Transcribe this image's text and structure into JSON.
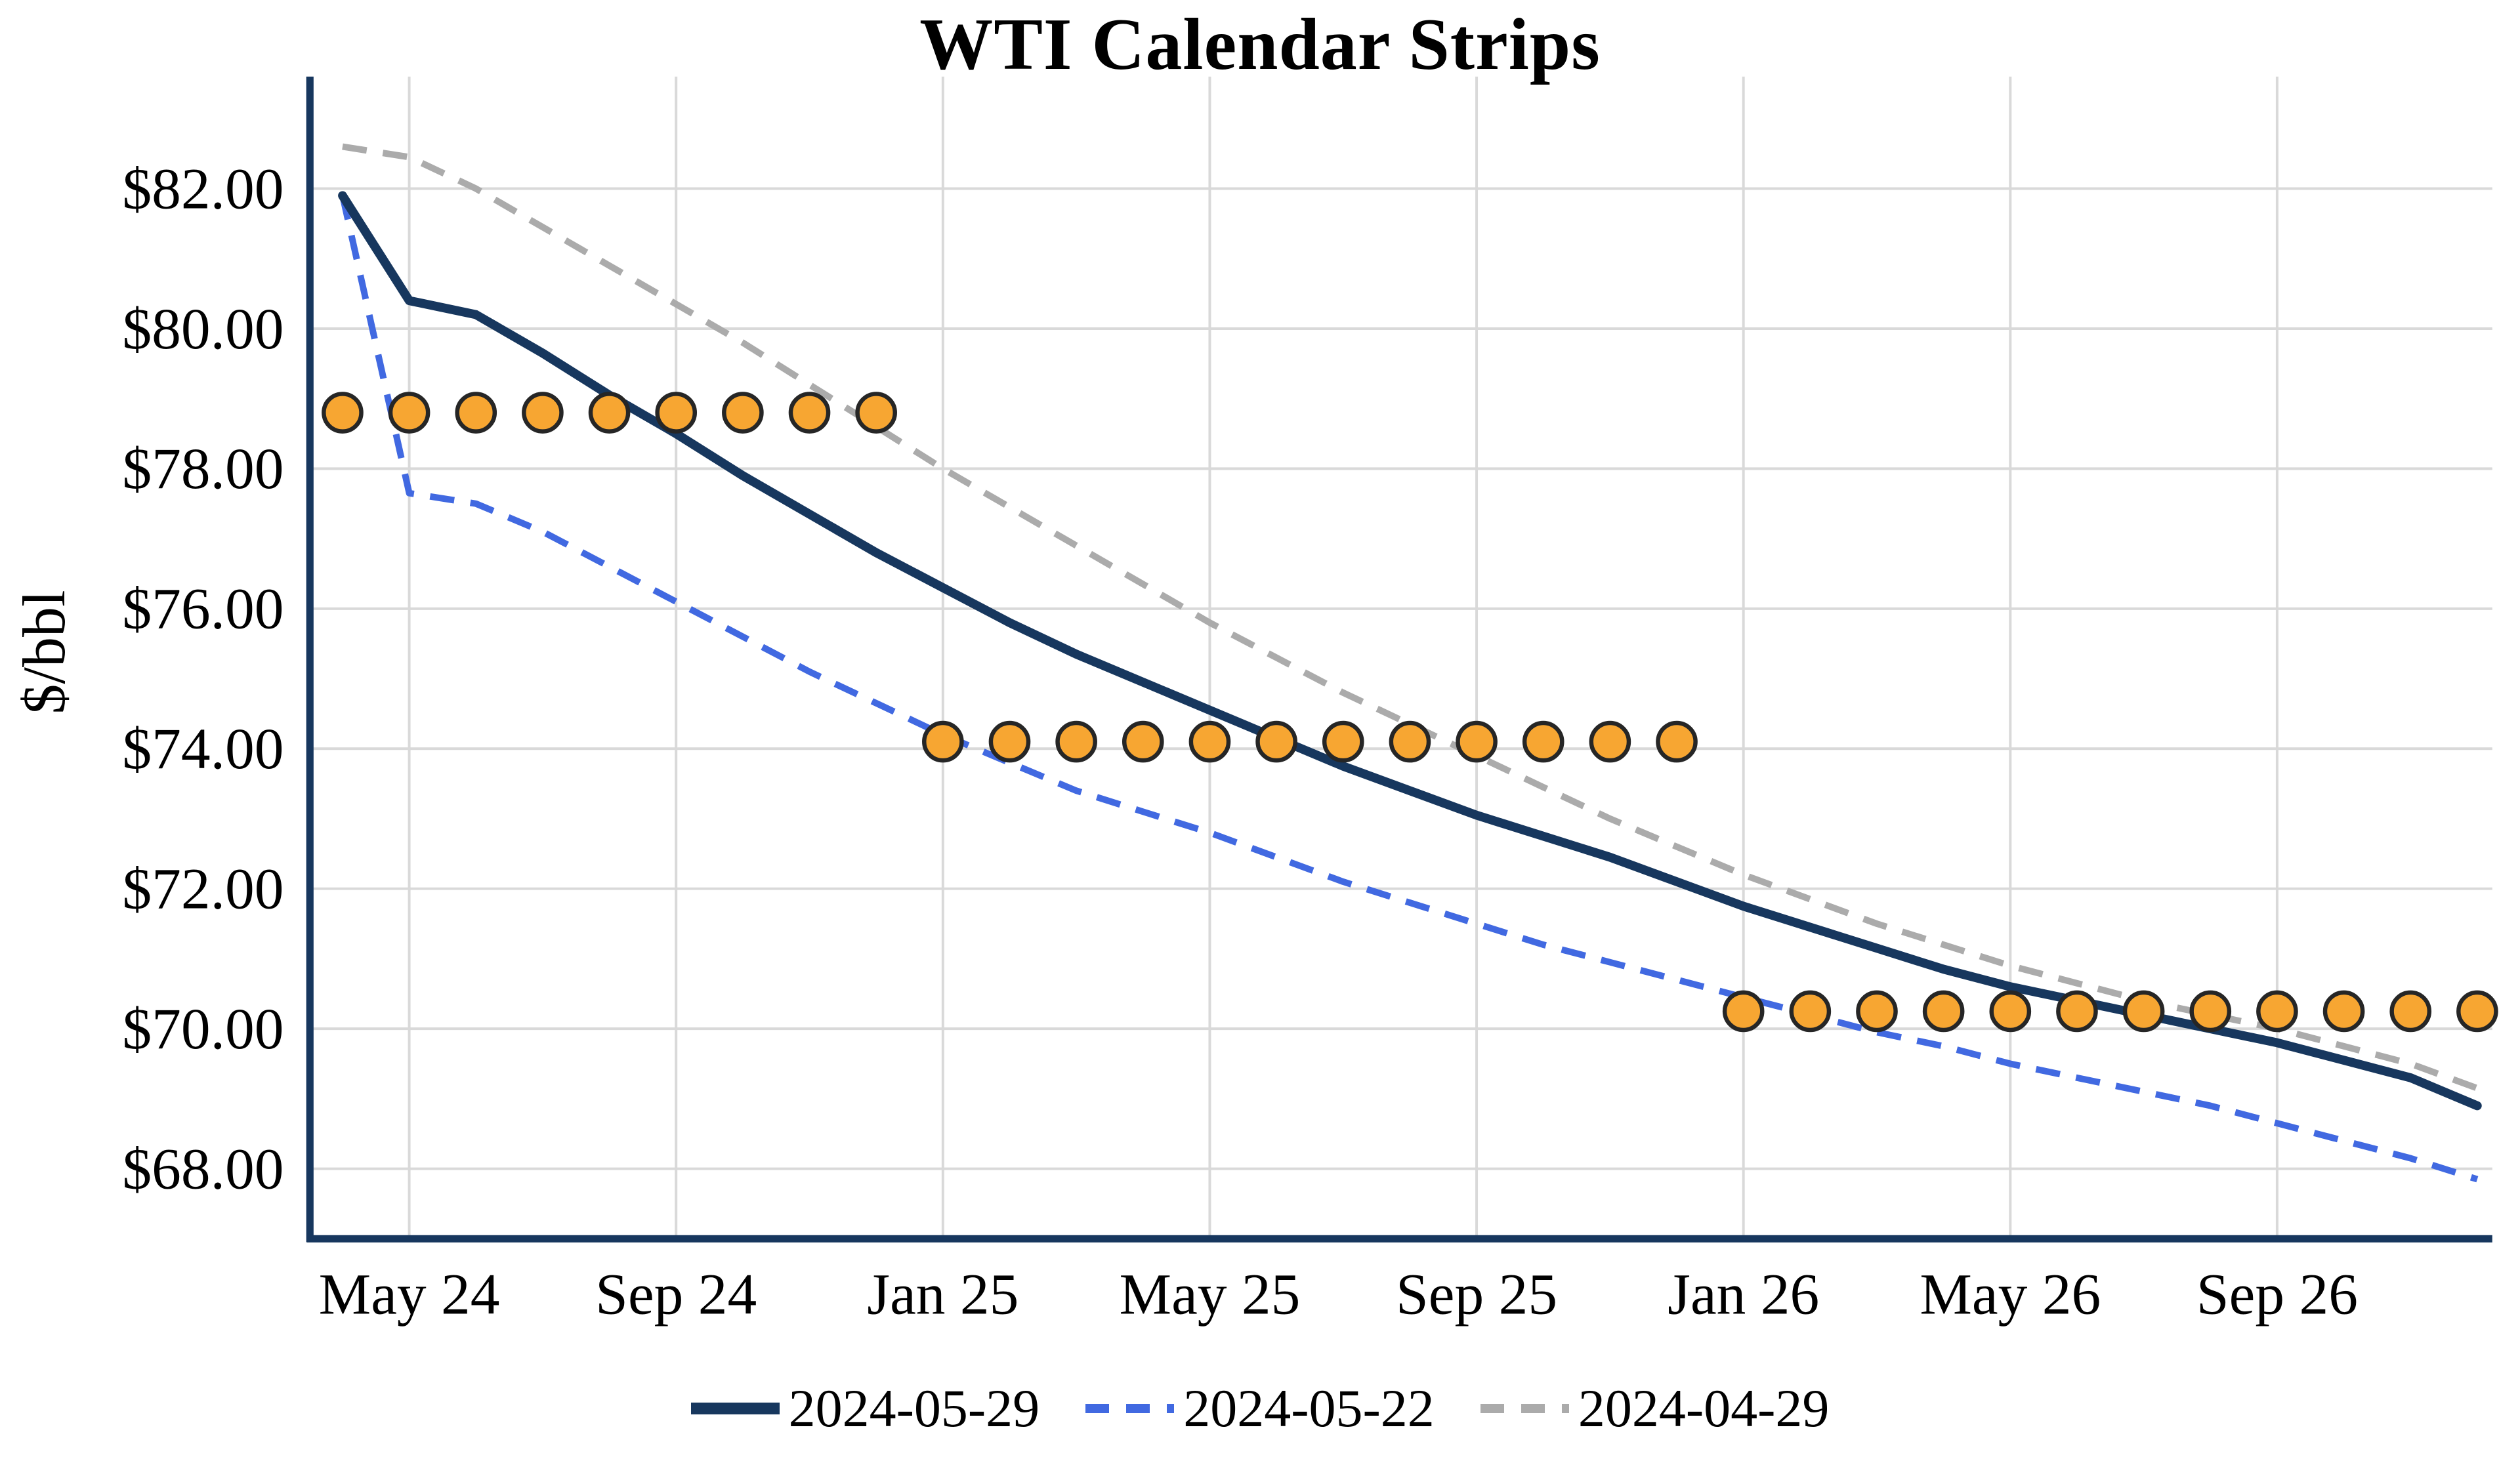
{
  "chart_data": {
    "type": "line",
    "title": "WTI Calendar Strips",
    "xlabel": "",
    "ylabel": "$/bbl",
    "ylim": [
      67.0,
      83.6
    ],
    "grid": true,
    "legend_position": "bottom",
    "background": "#FFFFFF",
    "axis_color": "#17375E",
    "grid_color": "#D9D9D9",
    "x_months": [
      "2024-04",
      "2024-05",
      "2024-06",
      "2024-07",
      "2024-08",
      "2024-09",
      "2024-10",
      "2024-11",
      "2024-12",
      "2025-01",
      "2025-02",
      "2025-03",
      "2025-04",
      "2025-05",
      "2025-06",
      "2025-07",
      "2025-08",
      "2025-09",
      "2025-10",
      "2025-11",
      "2025-12",
      "2026-01",
      "2026-02",
      "2026-03",
      "2026-04",
      "2026-05",
      "2026-06",
      "2026-07",
      "2026-08",
      "2026-09",
      "2026-10",
      "2026-11",
      "2026-12"
    ],
    "x_tick_labels": [
      {
        "label": "May 24",
        "month_index": 1
      },
      {
        "label": "Sep 24",
        "month_index": 5
      },
      {
        "label": "Jan 25",
        "month_index": 9
      },
      {
        "label": "May 25",
        "month_index": 13
      },
      {
        "label": "Sep 25",
        "month_index": 17
      },
      {
        "label": "Jan 26",
        "month_index": 21
      },
      {
        "label": "May 26",
        "month_index": 25
      },
      {
        "label": "Sep 26",
        "month_index": 29
      }
    ],
    "y_ticks": [
      {
        "value": 82,
        "label": "$82.00"
      },
      {
        "value": 80,
        "label": "$80.00"
      },
      {
        "value": 78,
        "label": "$78.00"
      },
      {
        "value": 76,
        "label": "$76.00"
      },
      {
        "value": 74,
        "label": "$74.00"
      },
      {
        "value": 72,
        "label": "$72.00"
      },
      {
        "value": 70,
        "label": "$70.00"
      },
      {
        "value": 68,
        "label": "$68.00"
      }
    ],
    "series": [
      {
        "name": "2024-05-29",
        "color": "#17375E",
        "style": "solid",
        "width": 5.5,
        "values": [
          81.9,
          80.4,
          80.2,
          79.65,
          79.05,
          78.5,
          77.9,
          77.35,
          76.8,
          76.3,
          75.8,
          75.35,
          74.95,
          74.55,
          74.15,
          73.75,
          73.4,
          73.05,
          72.75,
          72.45,
          72.1,
          71.75,
          71.45,
          71.15,
          70.85,
          70.6,
          70.4,
          70.2,
          70.0,
          69.8,
          69.55,
          69.3,
          68.9
        ]
      },
      {
        "name": "2024-05-22",
        "color": "#4169E1",
        "style": "dashed",
        "width": 4,
        "values": [
          81.9,
          77.65,
          77.5,
          77.1,
          76.6,
          76.1,
          75.6,
          75.1,
          74.65,
          74.2,
          73.8,
          73.4,
          73.1,
          72.8,
          72.45,
          72.1,
          71.8,
          71.5,
          71.2,
          70.95,
          70.7,
          70.45,
          70.2,
          69.95,
          69.75,
          69.5,
          69.3,
          69.1,
          68.9,
          68.65,
          68.4,
          68.15,
          67.85
        ]
      },
      {
        "name": "2024-04-29",
        "color": "#ABABAB",
        "style": "dashed",
        "width": 4,
        "values": [
          82.6,
          82.45,
          82.0,
          81.45,
          80.9,
          80.35,
          79.8,
          79.2,
          78.6,
          78.0,
          77.45,
          76.9,
          76.35,
          75.8,
          75.3,
          74.8,
          74.35,
          73.9,
          73.45,
          73.0,
          72.6,
          72.2,
          71.85,
          71.5,
          71.2,
          70.9,
          70.65,
          70.4,
          70.2,
          70.0,
          69.75,
          69.5,
          69.15
        ]
      }
    ],
    "markers": {
      "name": "calendar-strip-dot",
      "shape": "circle",
      "fill": "#F7A632",
      "stroke": "#262626",
      "radius": 11.5,
      "groups": [
        {
          "value": 78.8,
          "start_month_index": 0,
          "end_month_index": 8
        },
        {
          "value": 74.1,
          "start_month_index": 9,
          "end_month_index": 20
        },
        {
          "value": 70.25,
          "start_month_index": 21,
          "end_month_index": 32
        }
      ]
    }
  }
}
